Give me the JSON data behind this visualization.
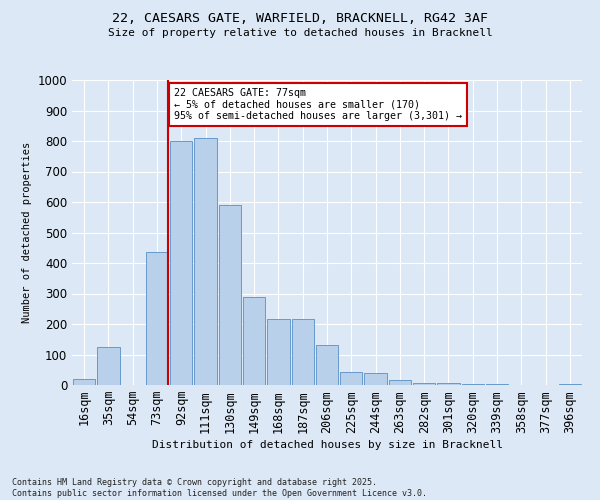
{
  "title_line1": "22, CAESARS GATE, WARFIELD, BRACKNELL, RG42 3AF",
  "title_line2": "Size of property relative to detached houses in Bracknell",
  "xlabel": "Distribution of detached houses by size in Bracknell",
  "ylabel": "Number of detached properties",
  "bar_labels": [
    "16sqm",
    "35sqm",
    "54sqm",
    "73sqm",
    "92sqm",
    "111sqm",
    "130sqm",
    "149sqm",
    "168sqm",
    "187sqm",
    "206sqm",
    "225sqm",
    "244sqm",
    "263sqm",
    "282sqm",
    "301sqm",
    "320sqm",
    "339sqm",
    "358sqm",
    "377sqm",
    "396sqm"
  ],
  "bar_values": [
    20,
    125,
    0,
    435,
    800,
    810,
    590,
    290,
    218,
    218,
    130,
    42,
    40,
    15,
    8,
    5,
    2,
    2,
    1,
    1,
    3
  ],
  "bar_color": "#b8d0ea",
  "bar_edge_color": "#6699cc",
  "bg_color": "#dce8f5",
  "grid_color": "#ffffff",
  "vline_color": "#cc0000",
  "annotation_text": "22 CAESARS GATE: 77sqm\n← 5% of detached houses are smaller (170)\n95% of semi-detached houses are larger (3,301) →",
  "annotation_box_color": "#ffffff",
  "annotation_box_edge": "#cc0000",
  "ylim": [
    0,
    1000
  ],
  "yticks": [
    0,
    100,
    200,
    300,
    400,
    500,
    600,
    700,
    800,
    900,
    1000
  ],
  "footnote": "Contains HM Land Registry data © Crown copyright and database right 2025.\nContains public sector information licensed under the Open Government Licence v3.0."
}
